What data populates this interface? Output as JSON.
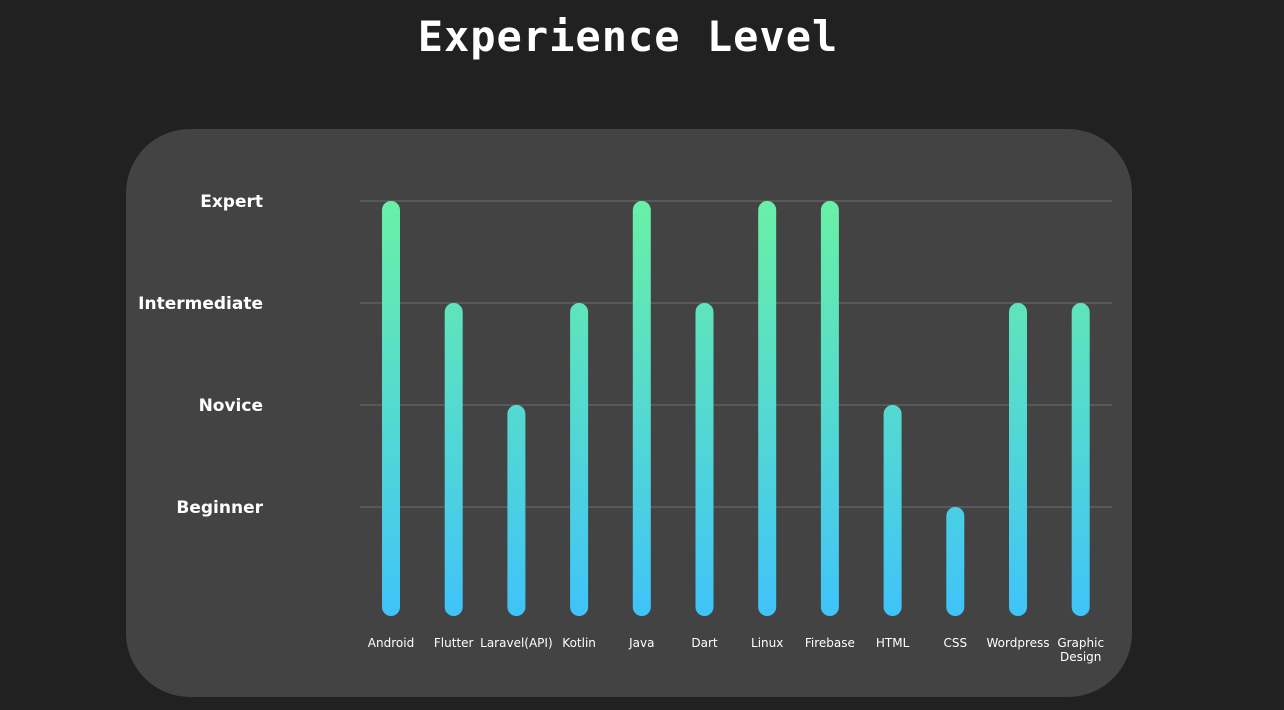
{
  "page": {
    "title": "Experience Level"
  },
  "colors": {
    "background": "#212121",
    "card": "#434343",
    "bar_top": "#69f0a6",
    "bar_bottom": "#40c4f8",
    "grid": "#6c6c6c"
  },
  "chart_data": {
    "type": "bar",
    "title": "",
    "xlabel": "",
    "ylabel": "",
    "levels": [
      "Beginner",
      "Novice",
      "Intermediate",
      "Expert"
    ],
    "ylim": [
      0,
      4
    ],
    "grid": true,
    "categories": [
      [
        "Android"
      ],
      [
        "Flutter"
      ],
      [
        "Laravel(API)"
      ],
      [
        "Kotlin"
      ],
      [
        "Java"
      ],
      [
        "Dart"
      ],
      [
        "Linux"
      ],
      [
        "Firebase"
      ],
      [
        "HTML"
      ],
      [
        "CSS"
      ],
      [
        "Wordpress"
      ],
      [
        "Graphic",
        "Design"
      ]
    ],
    "values": [
      4,
      3,
      2,
      3,
      4,
      3,
      4,
      4,
      2,
      1,
      3,
      3
    ]
  }
}
